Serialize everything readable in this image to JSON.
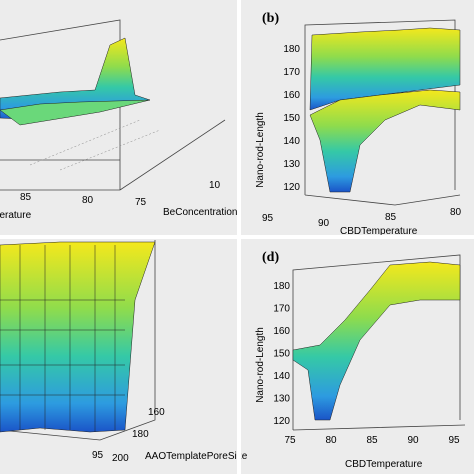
{
  "panels": [
    {
      "x_ticks": [
        "85",
        "80",
        "75"
      ],
      "side_ticks": [
        "10"
      ],
      "x_label": "Temperature",
      "side_label": "BeConcentration"
    },
    {
      "panel_label": "(b)",
      "y_label": "Nano-rod-Length",
      "y_ticks": [
        "180",
        "170",
        "160",
        "150",
        "140",
        "130",
        "120"
      ],
      "x_ticks": [
        "95",
        "90",
        "85",
        "80"
      ],
      "x_label": "CBDTemperature"
    },
    {
      "x_ticks": [
        "95"
      ],
      "side_ticks": [
        "160",
        "180",
        "200"
      ],
      "side_label": "AAOTemplatePoreSize"
    },
    {
      "panel_label": "(d)",
      "y_label": "Nano-rod-Length",
      "y_ticks": [
        "180",
        "170",
        "160",
        "150",
        "140",
        "130",
        "120"
      ],
      "x_ticks": [
        "75",
        "80",
        "85",
        "90",
        "95"
      ],
      "x_label": "CBDTemperature"
    }
  ]
}
